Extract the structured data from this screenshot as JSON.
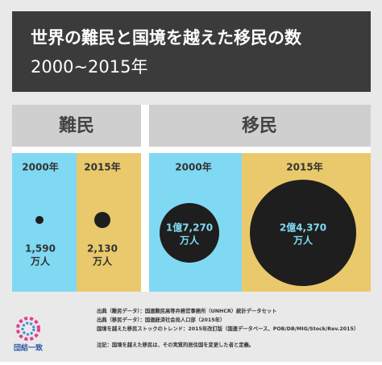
{
  "header": {
    "title": "世界の難民と国境を越えた移民の数",
    "subtitle": "2000~2015年"
  },
  "groups": [
    {
      "label": "難民",
      "columns": [
        {
          "year": "2000年",
          "value": "1,590",
          "unit": "万人"
        },
        {
          "year": "2015年",
          "value": "2,130",
          "unit": "万人"
        }
      ]
    },
    {
      "label": "移民",
      "columns": [
        {
          "year": "2000年",
          "value": "1億7,270",
          "unit": "万人"
        },
        {
          "year": "2015年",
          "value": "2億4,370",
          "unit": "万人"
        }
      ]
    }
  ],
  "footer": {
    "notes": [
      "出典（難民データ）：国連難民高等弁務官事務所（UNHCR）統計データセット",
      "出典（移民データ）：国連経済社会局人口部（2015年）",
      "国境を越えた移民ストックのトレンド：2015年改訂版（国連データベース、POB/DB/MIG/Stock/Rev.2015）",
      "注記：国境を越えた移民は、その実質的居住国を変更した者と定義。"
    ],
    "logo": "団結一致"
  }
}
